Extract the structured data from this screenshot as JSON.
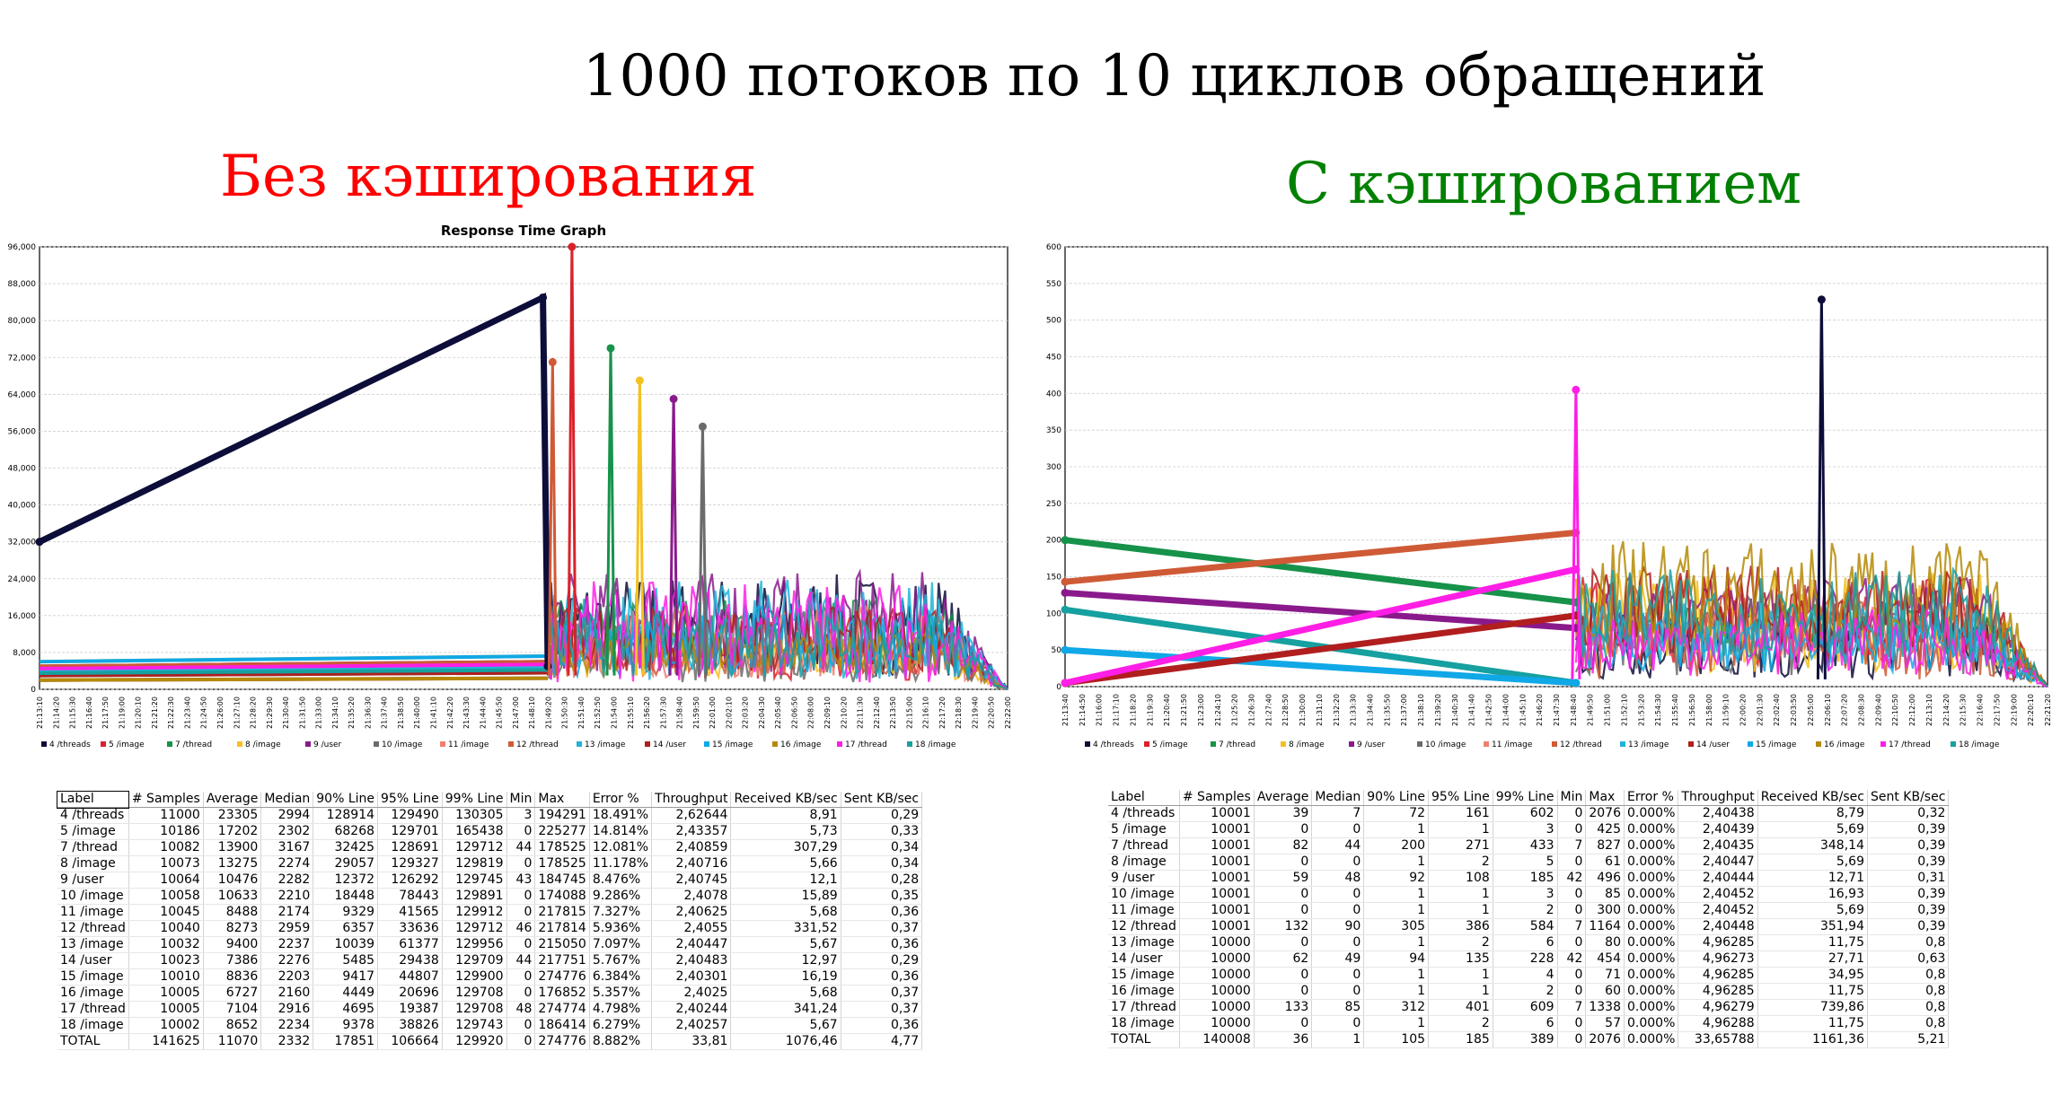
{
  "title": "1000 потоков по 10 циклов обращений",
  "left_heading": "Без кэширования",
  "right_heading": "С кэшированием",
  "colors": {
    "left_heading": "#ff0000",
    "right_heading": "#008000",
    "series": {
      "4 /threads": "#0d0d3a",
      "5 /image": "#d9232b",
      "7 /thread": "#16924a",
      "8 /image": "#f4c11f",
      "9 /user": "#8a1a8c",
      "10 /image": "#6b6b6b",
      "11 /image": "#f08070",
      "12 /thread": "#cf5a36",
      "13 /image": "#1fb4d6",
      "14 /user": "#b01e1e",
      "15 /image": "#10a8e6",
      "16 /image": "#b58a06",
      "17 /thread": "#ff1ee6",
      "18 /image": "#16a0a0"
    }
  },
  "chart_data": [
    {
      "type": "line",
      "title": "Response Time Graph",
      "ylim": [
        0,
        96000
      ],
      "y_ticks": [
        "0",
        "8,000",
        "16,000",
        "24,000",
        "32,000",
        "40,000",
        "48,000",
        "56,000",
        "64,000",
        "72,000",
        "80,000",
        "88,000",
        "96,000"
      ],
      "x_ticks": [
        "21:13:10",
        "21:14:20",
        "21:15:30",
        "21:16:40",
        "21:17:50",
        "21:19:00",
        "21:20:10",
        "21:21:20",
        "21:22:30",
        "21:23:40",
        "21:24:50",
        "21:26:00",
        "21:27:10",
        "21:28:20",
        "21:29:30",
        "21:30:40",
        "21:31:50",
        "21:33:00",
        "21:34:10",
        "21:35:20",
        "21:36:30",
        "21:37:40",
        "21:38:50",
        "21:40:00",
        "21:41:10",
        "21:42:20",
        "21:43:30",
        "21:44:40",
        "21:45:50",
        "21:47:00",
        "21:48:10",
        "21:49:20",
        "21:50:30",
        "21:51:40",
        "21:52:50",
        "21:54:00",
        "21:55:10",
        "21:56:20",
        "21:57:30",
        "21:58:40",
        "21:59:50",
        "22:01:00",
        "22:02:10",
        "22:03:20",
        "22:04:30",
        "22:05:40",
        "22:06:50",
        "22:08:00",
        "22:09:10",
        "22:10:20",
        "22:11:30",
        "22:12:40",
        "22:13:50",
        "22:15:00",
        "22:16:10",
        "22:17:20",
        "22:18:30",
        "22:19:40",
        "22:20:50",
        "22:22:00"
      ],
      "grid": true,
      "legend_position": "bottom",
      "legend": [
        "4 /threads",
        "5 /image",
        "7 /thread",
        "8 /image",
        "9 /user",
        "10 /image",
        "11 /image",
        "12 /thread",
        "13 /image",
        "14 /user",
        "15 /image",
        "16 /image",
        "17 /thread",
        "18 /image"
      ],
      "highlights": [
        {
          "series": "4 /threads",
          "points": [
            [
              0,
              32000
            ],
            [
              0.52,
              85000
            ],
            [
              0.525,
              5000
            ]
          ]
        },
        {
          "series": "5 /image",
          "peak": 96000,
          "at": 0.55
        },
        {
          "series": "12 /thread",
          "peak": 71000,
          "at": 0.53
        },
        {
          "series": "7 /thread",
          "peak": 74000,
          "at": 0.59
        },
        {
          "series": "8 /image",
          "peak": 67000,
          "at": 0.62
        },
        {
          "series": "9 /user",
          "peak": 63000,
          "at": 0.655
        },
        {
          "series": "10 /image",
          "peak": 57000,
          "at": 0.685
        }
      ]
    },
    {
      "type": "line",
      "title": "",
      "ylim": [
        0,
        600
      ],
      "y_ticks": [
        "0",
        "50",
        "100",
        "150",
        "200",
        "250",
        "300",
        "350",
        "400",
        "450",
        "500",
        "550",
        "600"
      ],
      "x_ticks": [
        "21:13:40",
        "21:14:50",
        "21:16:00",
        "21:17:10",
        "21:18:20",
        "21:19:30",
        "21:20:40",
        "21:21:50",
        "21:23:00",
        "21:24:10",
        "21:25:20",
        "21:26:30",
        "21:27:40",
        "21:28:50",
        "21:30:00",
        "21:31:10",
        "21:32:20",
        "21:33:30",
        "21:34:40",
        "21:35:50",
        "21:37:00",
        "21:38:10",
        "21:39:20",
        "21:40:30",
        "21:41:40",
        "21:42:50",
        "21:44:00",
        "21:45:10",
        "21:46:20",
        "21:47:30",
        "21:48:40",
        "21:49:50",
        "21:51:00",
        "21:52:10",
        "21:53:20",
        "21:54:30",
        "21:55:40",
        "21:56:50",
        "21:58:00",
        "21:59:10",
        "22:00:20",
        "22:01:30",
        "22:02:40",
        "22:03:50",
        "22:05:00",
        "22:06:10",
        "22:07:20",
        "22:08:30",
        "22:09:40",
        "22:10:50",
        "22:12:00",
        "22:13:10",
        "22:14:20",
        "22:15:30",
        "22:16:40",
        "22:17:50",
        "22:19:00",
        "22:20:10",
        "22:21:20"
      ],
      "grid": true,
      "legend_position": "bottom",
      "legend": [
        "4 /threads",
        "5 /image",
        "7 /thread",
        "8 /image",
        "9 /user",
        "10 /image",
        "11 /image",
        "12 /thread",
        "13 /image",
        "14 /user",
        "15 /image",
        "16 /image",
        "17 /thread",
        "18 /image"
      ],
      "highlights": [
        {
          "series": "7 /thread",
          "points": [
            [
              0,
              200
            ],
            [
              0.52,
              115
            ]
          ]
        },
        {
          "series": "12 /thread",
          "points": [
            [
              0,
              143
            ],
            [
              0.52,
              210
            ]
          ]
        },
        {
          "series": "9 /user",
          "points": [
            [
              0,
              128
            ],
            [
              0.52,
              80
            ]
          ]
        },
        {
          "series": "18 /image",
          "points": [
            [
              0,
              105
            ],
            [
              0.52,
              5
            ]
          ]
        },
        {
          "series": "15 /image",
          "points": [
            [
              0,
              50
            ],
            [
              0.52,
              5
            ]
          ]
        },
        {
          "series": "14 /user",
          "points": [
            [
              0,
              5
            ],
            [
              0.52,
              97
            ]
          ]
        },
        {
          "series": "17 /thread",
          "points": [
            [
              0,
              5
            ],
            [
              0.52,
              160
            ]
          ]
        },
        {
          "series": "17 /thread",
          "peak": 405,
          "at": 0.52
        },
        {
          "series": "4 /threads",
          "peak": 528,
          "at": 0.77
        }
      ]
    }
  ],
  "table_headers": [
    "Label",
    "# Samples",
    "Average",
    "Median",
    "90% Line",
    "95% Line",
    "99% Line",
    "Min",
    "Max",
    "Error %",
    "Throughput",
    "Received KB/sec",
    "Sent KB/sec"
  ],
  "table_left": [
    [
      "4 /threads",
      "11000",
      "23305",
      "2994",
      "128914",
      "129490",
      "130305",
      "3",
      "194291",
      "18.491%",
      "2,62644",
      "8,91",
      "0,29"
    ],
    [
      "5 /image",
      "10186",
      "17202",
      "2302",
      "68268",
      "129701",
      "165438",
      "0",
      "225277",
      "14.814%",
      "2,43357",
      "5,73",
      "0,33"
    ],
    [
      "7 /thread",
      "10082",
      "13900",
      "3167",
      "32425",
      "128691",
      "129712",
      "44",
      "178525",
      "12.081%",
      "2,40859",
      "307,29",
      "0,34"
    ],
    [
      "8 /image",
      "10073",
      "13275",
      "2274",
      "29057",
      "129327",
      "129819",
      "0",
      "178525",
      "11.178%",
      "2,40716",
      "5,66",
      "0,34"
    ],
    [
      "9 /user",
      "10064",
      "10476",
      "2282",
      "12372",
      "126292",
      "129745",
      "43",
      "184745",
      "8.476%",
      "2,40745",
      "12,1",
      "0,28"
    ],
    [
      "10 /image",
      "10058",
      "10633",
      "2210",
      "18448",
      "78443",
      "129891",
      "0",
      "174088",
      "9.286%",
      "2,4078",
      "15,89",
      "0,35"
    ],
    [
      "11 /image",
      "10045",
      "8488",
      "2174",
      "9329",
      "41565",
      "129912",
      "0",
      "217815",
      "7.327%",
      "2,40625",
      "5,68",
      "0,36"
    ],
    [
      "12 /thread",
      "10040",
      "8273",
      "2959",
      "6357",
      "33636",
      "129712",
      "46",
      "217814",
      "5.936%",
      "2,4055",
      "331,52",
      "0,37"
    ],
    [
      "13 /image",
      "10032",
      "9400",
      "2237",
      "10039",
      "61377",
      "129956",
      "0",
      "215050",
      "7.097%",
      "2,40447",
      "5,67",
      "0,36"
    ],
    [
      "14 /user",
      "10023",
      "7386",
      "2276",
      "5485",
      "29438",
      "129709",
      "44",
      "217751",
      "5.767%",
      "2,40483",
      "12,97",
      "0,29"
    ],
    [
      "15 /image",
      "10010",
      "8836",
      "2203",
      "9417",
      "44807",
      "129900",
      "0",
      "274776",
      "6.384%",
      "2,40301",
      "16,19",
      "0,36"
    ],
    [
      "16 /image",
      "10005",
      "6727",
      "2160",
      "4449",
      "20696",
      "129708",
      "0",
      "176852",
      "5.357%",
      "2,4025",
      "5,68",
      "0,37"
    ],
    [
      "17 /thread",
      "10005",
      "7104",
      "2916",
      "4695",
      "19387",
      "129708",
      "48",
      "274774",
      "4.798%",
      "2,40244",
      "341,24",
      "0,37"
    ],
    [
      "18 /image",
      "10002",
      "8652",
      "2234",
      "9378",
      "38826",
      "129743",
      "0",
      "186414",
      "6.279%",
      "2,40257",
      "5,67",
      "0,36"
    ],
    [
      "TOTAL",
      "141625",
      "11070",
      "2332",
      "17851",
      "106664",
      "129920",
      "0",
      "274776",
      "8.882%",
      "33,81",
      "1076,46",
      "4,77"
    ]
  ],
  "table_right": [
    [
      "4 /threads",
      "10001",
      "39",
      "7",
      "72",
      "161",
      "602",
      "0",
      "2076",
      "0.000%",
      "2,40438",
      "8,79",
      "0,32"
    ],
    [
      "5 /image",
      "10001",
      "0",
      "0",
      "1",
      "1",
      "3",
      "0",
      "425",
      "0.000%",
      "2,40439",
      "5,69",
      "0,39"
    ],
    [
      "7 /thread",
      "10001",
      "82",
      "44",
      "200",
      "271",
      "433",
      "7",
      "827",
      "0.000%",
      "2,40435",
      "348,14",
      "0,39"
    ],
    [
      "8 /image",
      "10001",
      "0",
      "0",
      "1",
      "2",
      "5",
      "0",
      "61",
      "0.000%",
      "2,40447",
      "5,69",
      "0,39"
    ],
    [
      "9 /user",
      "10001",
      "59",
      "48",
      "92",
      "108",
      "185",
      "42",
      "496",
      "0.000%",
      "2,40444",
      "12,71",
      "0,31"
    ],
    [
      "10 /image",
      "10001",
      "0",
      "0",
      "1",
      "1",
      "3",
      "0",
      "85",
      "0.000%",
      "2,40452",
      "16,93",
      "0,39"
    ],
    [
      "11 /image",
      "10001",
      "0",
      "0",
      "1",
      "1",
      "2",
      "0",
      "300",
      "0.000%",
      "2,40452",
      "5,69",
      "0,39"
    ],
    [
      "12 /thread",
      "10001",
      "132",
      "90",
      "305",
      "386",
      "584",
      "7",
      "1164",
      "0.000%",
      "2,40448",
      "351,94",
      "0,39"
    ],
    [
      "13 /image",
      "10000",
      "0",
      "0",
      "1",
      "2",
      "6",
      "0",
      "80",
      "0.000%",
      "4,96285",
      "11,75",
      "0,8"
    ],
    [
      "14 /user",
      "10000",
      "62",
      "49",
      "94",
      "135",
      "228",
      "42",
      "454",
      "0.000%",
      "4,96273",
      "27,71",
      "0,63"
    ],
    [
      "15 /image",
      "10000",
      "0",
      "0",
      "1",
      "1",
      "4",
      "0",
      "71",
      "0.000%",
      "4,96285",
      "34,95",
      "0,8"
    ],
    [
      "16 /image",
      "10000",
      "0",
      "0",
      "1",
      "1",
      "2",
      "0",
      "60",
      "0.000%",
      "4,96285",
      "11,75",
      "0,8"
    ],
    [
      "17 /thread",
      "10000",
      "133",
      "85",
      "312",
      "401",
      "609",
      "7",
      "1338",
      "0.000%",
      "4,96279",
      "739,86",
      "0,8"
    ],
    [
      "18 /image",
      "10000",
      "0",
      "0",
      "1",
      "2",
      "6",
      "0",
      "57",
      "0.000%",
      "4,96288",
      "11,75",
      "0,8"
    ],
    [
      "TOTAL",
      "140008",
      "36",
      "1",
      "105",
      "185",
      "389",
      "0",
      "2076",
      "0.000%",
      "33,65788",
      "1161,36",
      "5,21"
    ]
  ]
}
